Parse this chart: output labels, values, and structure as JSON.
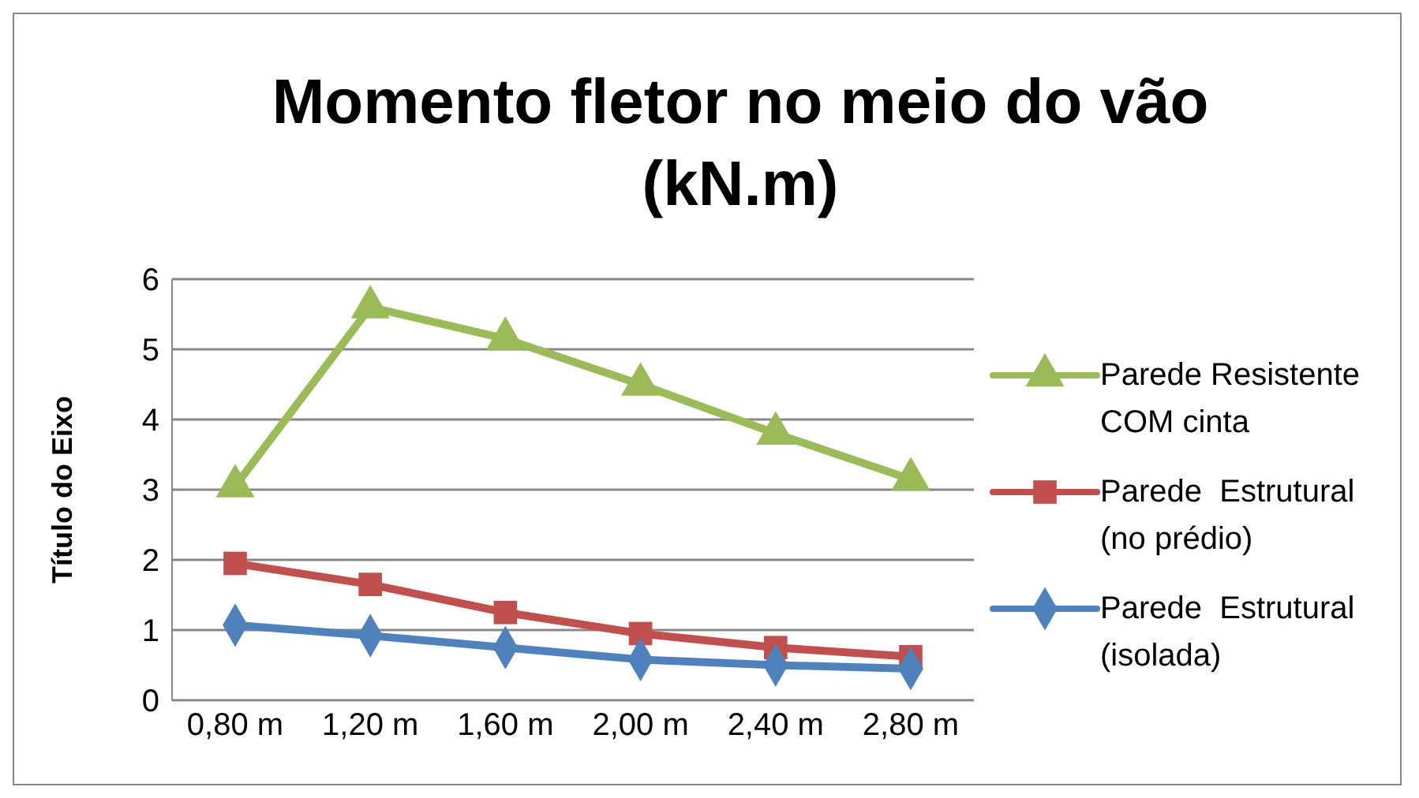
{
  "chart_data": {
    "type": "line",
    "title": "Momento fletor no meio do vão (kN.m)",
    "ylabel": "Título do Eixo",
    "categories": [
      "0,80 m",
      "1,20 m",
      "1,60 m",
      "2,00 m",
      "2,40 m",
      "2,80 m"
    ],
    "series": [
      {
        "name": "Parede Resistente COM cinta",
        "color": "#9bbb59",
        "marker": "triangle",
        "values": [
          3.05,
          5.6,
          5.15,
          4.5,
          3.8,
          3.15
        ]
      },
      {
        "name": "Parede  Estrutural (no prédio)",
        "color": "#c0504d",
        "marker": "square",
        "values": [
          1.95,
          1.65,
          1.25,
          0.95,
          0.75,
          0.62
        ]
      },
      {
        "name": "Parede  Estrutural (isolada)",
        "color": "#4f81bd",
        "marker": "diamond",
        "values": [
          1.07,
          0.92,
          0.75,
          0.58,
          0.5,
          0.45
        ]
      }
    ],
    "ylim": [
      0,
      6
    ],
    "yticks": [
      0,
      1,
      2,
      3,
      4,
      5,
      6
    ],
    "grid": "y",
    "legend": "right",
    "line_style": "solid"
  }
}
